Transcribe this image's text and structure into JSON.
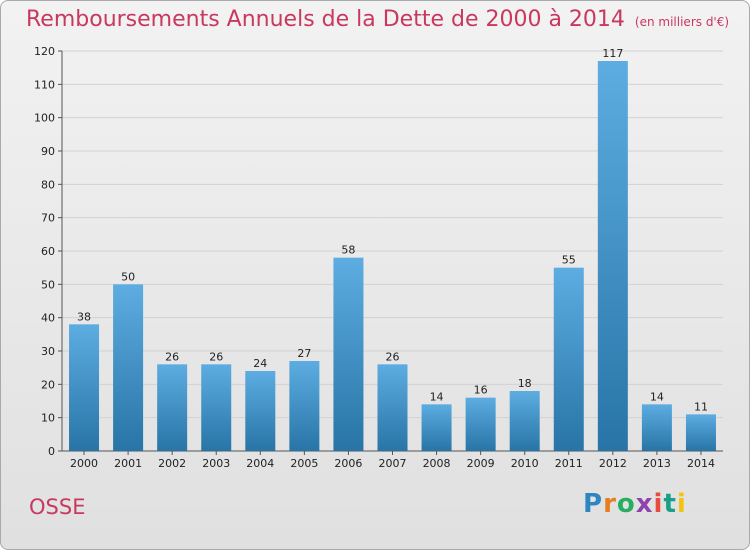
{
  "title": "Remboursements Annuels de la Dette de 2000 à 2014",
  "unit": "(en milliers d'€)",
  "commune": "OSSE",
  "logo": {
    "text": "Proxiti",
    "letters": [
      "P",
      "r",
      "o",
      "x",
      "i",
      "t",
      "i"
    ],
    "colors": [
      "#2e86c1",
      "#e67e22",
      "#27ae60",
      "#8e44ad",
      "#e74c3c",
      "#16a085",
      "#f1c40f"
    ]
  },
  "colors": {
    "title": "#c8385f",
    "bar_top": "#5dade2",
    "bar_bottom": "#2874a6"
  },
  "chart_data": {
    "type": "bar",
    "title": "Remboursements Annuels de la Dette de 2000 à 2014",
    "xlabel": "",
    "ylabel": "",
    "categories": [
      "2000",
      "2001",
      "2002",
      "2003",
      "2004",
      "2005",
      "2006",
      "2007",
      "2008",
      "2009",
      "2010",
      "2011",
      "2012",
      "2013",
      "2014"
    ],
    "values": [
      38,
      50,
      26,
      26,
      24,
      27,
      58,
      26,
      14,
      16,
      18,
      55,
      117,
      14,
      11
    ],
    "ylim": [
      0,
      120
    ],
    "yticks": [
      0,
      10,
      20,
      30,
      40,
      50,
      60,
      70,
      80,
      90,
      100,
      110,
      120
    ],
    "grid": true,
    "legend": "none"
  }
}
